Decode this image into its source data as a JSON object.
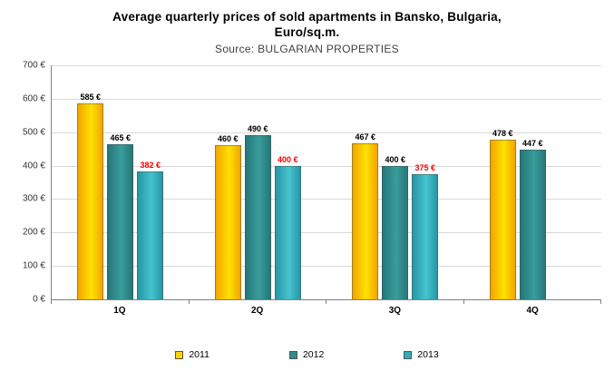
{
  "chart": {
    "title_line1": "Average quarterly prices of sold apartments in Bansko, Bulgaria,",
    "title_line2": "Euro/sq.m.",
    "subtitle": "Source: BULGARIAN PROPERTIES"
  },
  "chart_data": {
    "type": "bar",
    "title": "Average quarterly prices of sold apartments in Bansko, Bulgaria, Euro/sq.m.",
    "subtitle": "Source: BULGARIAN PROPERTIES",
    "categories": [
      "1Q",
      "2Q",
      "3Q",
      "4Q"
    ],
    "series": [
      {
        "name": "2011",
        "color_dark": "#F2A500",
        "color_light": "#FFE100",
        "legend_color": "#FFD400",
        "label_color": "#000000",
        "values": [
          585,
          460,
          467,
          478
        ]
      },
      {
        "name": "2012",
        "color_dark": "#257878",
        "color_light": "#3A9C9C",
        "legend_color": "#2E8C8C",
        "label_color": "#000000",
        "values": [
          465,
          490,
          400,
          447
        ]
      },
      {
        "name": "2013",
        "color_dark": "#2697A6",
        "color_light": "#47C3CF",
        "legend_color": "#31AEBC",
        "label_color": "#FF0000",
        "values": [
          382,
          400,
          375,
          null
        ]
      }
    ],
    "ylim": [
      0,
      700
    ],
    "ytick_step": 100,
    "ytick_suffix": " €",
    "value_suffix": " €",
    "grid": true,
    "legend_position": "bottom"
  }
}
